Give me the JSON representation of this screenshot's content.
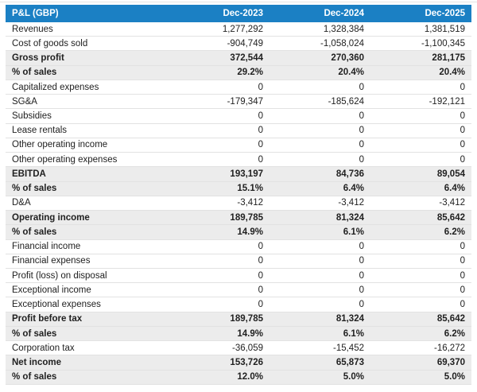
{
  "chart_data": {
    "type": "table",
    "title": "P&L (GBP)",
    "currency": "GBP",
    "columns": [
      "Dec-2023",
      "Dec-2024",
      "Dec-2025"
    ],
    "rows": [
      {
        "label": "Revenues",
        "values": [
          "1,277,292",
          "1,328,384",
          "1,381,519"
        ],
        "bold": false
      },
      {
        "label": "Cost of goods sold",
        "values": [
          "-904,749",
          "-1,058,024",
          "-1,100,345"
        ],
        "bold": false
      },
      {
        "label": "Gross profit",
        "values": [
          "372,544",
          "270,360",
          "281,175"
        ],
        "bold": true
      },
      {
        "label": "% of sales",
        "values": [
          "29.2%",
          "20.4%",
          "20.4%"
        ],
        "bold": true
      },
      {
        "label": "Capitalized expenses",
        "values": [
          "0",
          "0",
          "0"
        ],
        "bold": false
      },
      {
        "label": "SG&A",
        "values": [
          "-179,347",
          "-185,624",
          "-192,121"
        ],
        "bold": false
      },
      {
        "label": "Subsidies",
        "values": [
          "0",
          "0",
          "0"
        ],
        "bold": false
      },
      {
        "label": "Lease rentals",
        "values": [
          "0",
          "0",
          "0"
        ],
        "bold": false
      },
      {
        "label": "Other operating income",
        "values": [
          "0",
          "0",
          "0"
        ],
        "bold": false
      },
      {
        "label": "Other operating expenses",
        "values": [
          "0",
          "0",
          "0"
        ],
        "bold": false
      },
      {
        "label": "EBITDA",
        "values": [
          "193,197",
          "84,736",
          "89,054"
        ],
        "bold": true
      },
      {
        "label": "% of sales",
        "values": [
          "15.1%",
          "6.4%",
          "6.4%"
        ],
        "bold": true
      },
      {
        "label": "D&A",
        "values": [
          "-3,412",
          "-3,412",
          "-3,412"
        ],
        "bold": false
      },
      {
        "label": "Operating income",
        "values": [
          "189,785",
          "81,324",
          "85,642"
        ],
        "bold": true
      },
      {
        "label": "% of sales",
        "values": [
          "14.9%",
          "6.1%",
          "6.2%"
        ],
        "bold": true
      },
      {
        "label": "Financial income",
        "values": [
          "0",
          "0",
          "0"
        ],
        "bold": false
      },
      {
        "label": "Financial expenses",
        "values": [
          "0",
          "0",
          "0"
        ],
        "bold": false
      },
      {
        "label": "Profit (loss) on disposal",
        "values": [
          "0",
          "0",
          "0"
        ],
        "bold": false
      },
      {
        "label": "Exceptional income",
        "values": [
          "0",
          "0",
          "0"
        ],
        "bold": false
      },
      {
        "label": "Exceptional expenses",
        "values": [
          "0",
          "0",
          "0"
        ],
        "bold": false
      },
      {
        "label": "Profit before tax",
        "values": [
          "189,785",
          "81,324",
          "85,642"
        ],
        "bold": true
      },
      {
        "label": "% of sales",
        "values": [
          "14.9%",
          "6.1%",
          "6.2%"
        ],
        "bold": true
      },
      {
        "label": "Corporation tax",
        "values": [
          "-36,059",
          "-15,452",
          "-16,272"
        ],
        "bold": false
      },
      {
        "label": "Net income",
        "values": [
          "153,726",
          "65,873",
          "69,370"
        ],
        "bold": true
      },
      {
        "label": "% of sales",
        "values": [
          "12.0%",
          "5.0%",
          "5.0%"
        ],
        "bold": true
      }
    ]
  },
  "colors": {
    "header_bg": "#1b80c4",
    "header_text": "#ffffff",
    "highlight_row_bg": "#ececec",
    "row_border": "#e2e2e2",
    "body_text": "#212121"
  }
}
